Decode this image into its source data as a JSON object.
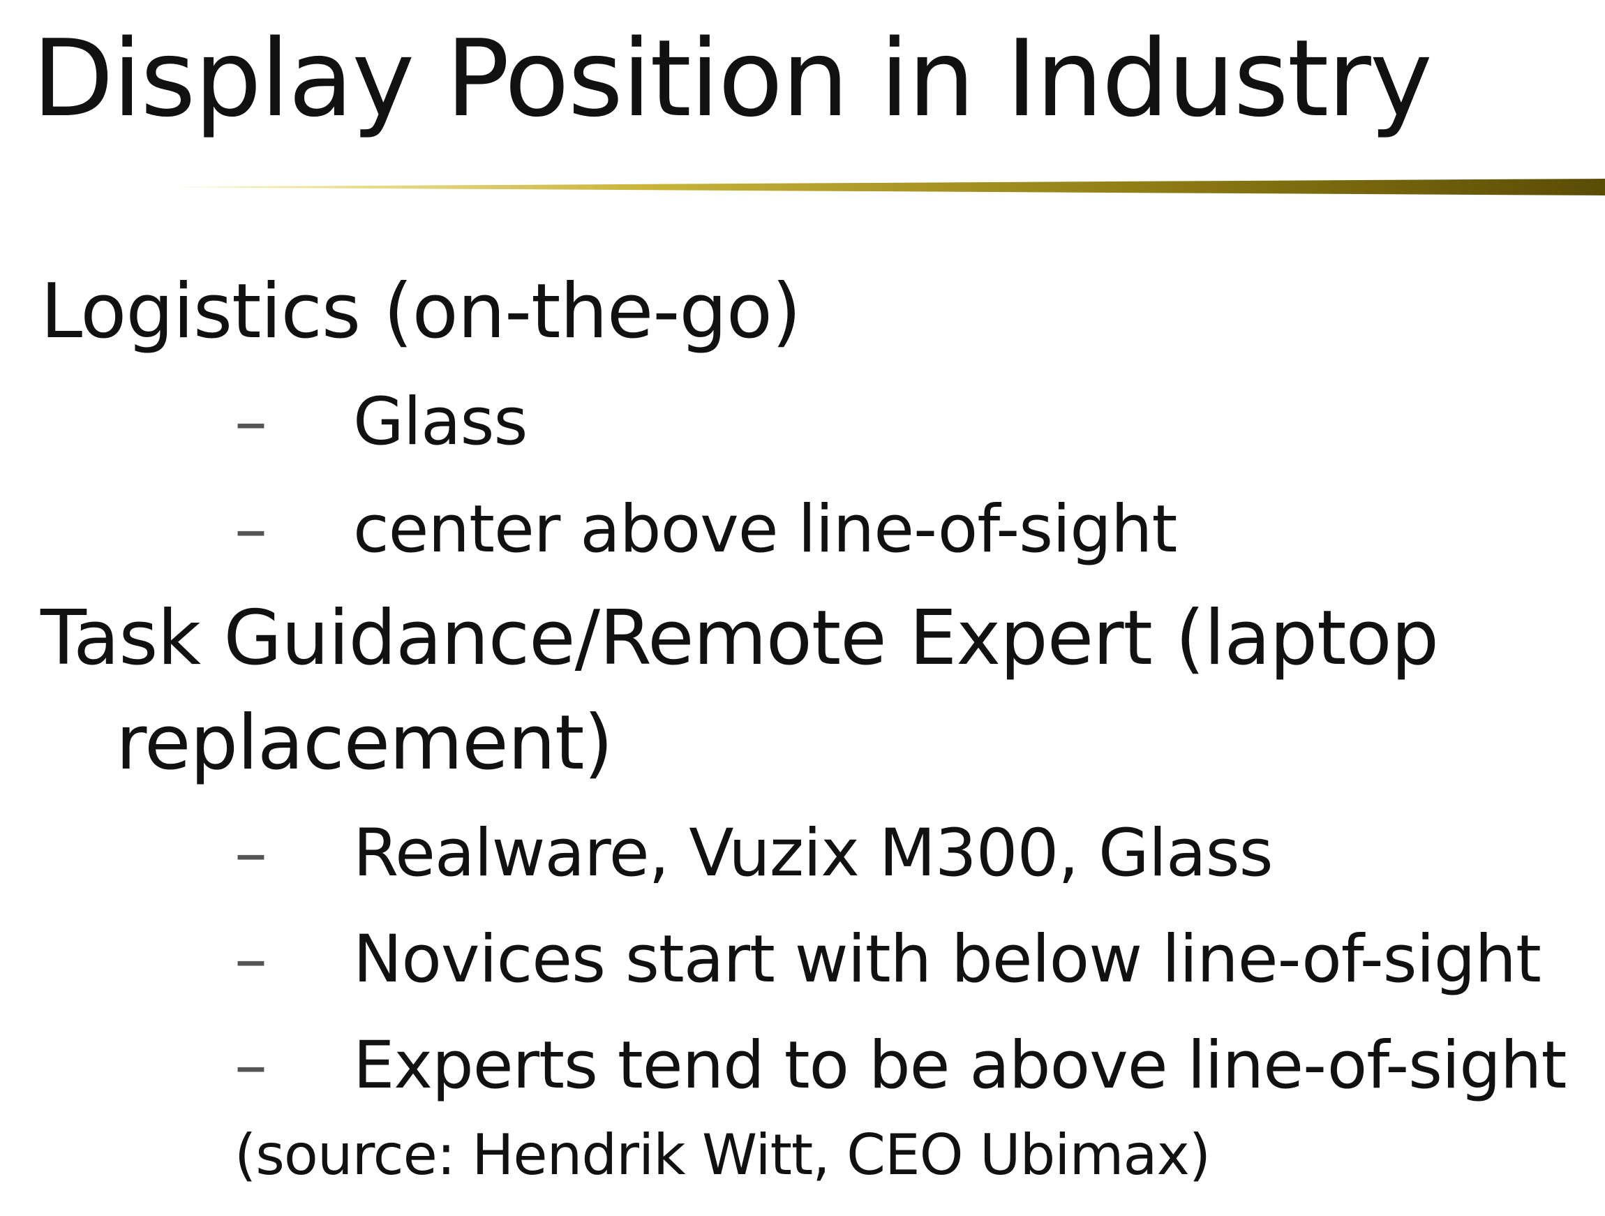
{
  "slide": {
    "title": "Display Position in Industry",
    "sections": [
      {
        "heading": "Logistics (on-the-go)",
        "items": [
          "Glass",
          "center above line-of-sight"
        ]
      },
      {
        "heading_line1": "Task Guidance/Remote Expert (laptop",
        "heading_line2": "replacement)",
        "items": [
          "Realware, Vuzix M300, Glass",
          "Novices start with below line-of-sight",
          "Experts tend to be above line-of-sight"
        ]
      }
    ],
    "bullet_dash": "–",
    "source": "(source: Hendrik Witt, CEO Ubimax)",
    "accent_color": "#8a7a12"
  }
}
